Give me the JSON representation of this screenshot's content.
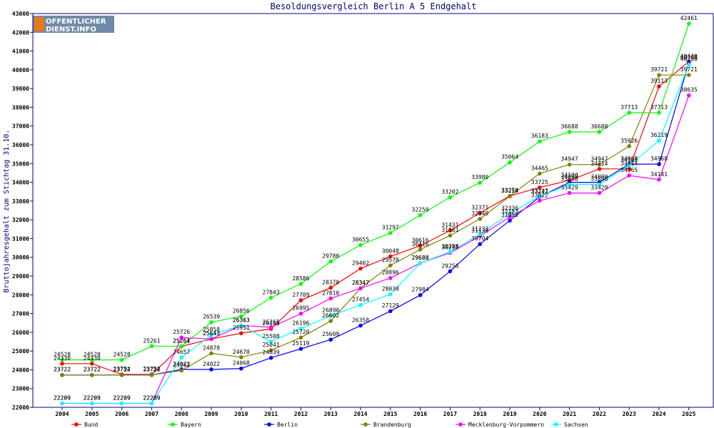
{
  "logo": {
    "line1": "OFFENTLICHER",
    "line2": "DIENST.INFO"
  },
  "chart_data": {
    "type": "line",
    "title": "Besoldungsvergleich Berlin A 5 Endgehalt",
    "xlabel": "",
    "ylabel": "Bruttojahresgehalt zum Stichtag 31.10.",
    "ylim": [
      22000,
      43000
    ],
    "yticks": [
      22000,
      23000,
      24000,
      25000,
      26000,
      27000,
      28000,
      29000,
      30000,
      31000,
      32000,
      33000,
      34000,
      35000,
      36000,
      37000,
      38000,
      39000,
      40000,
      41000,
      42000,
      43000
    ],
    "grid": false,
    "legend": "bottom",
    "x": [
      "2004",
      "2005",
      "2006",
      "2007",
      "2008",
      "2009",
      "2010",
      "2011",
      "2012",
      "2013",
      "2014",
      "2015",
      "2016",
      "2017",
      "2018",
      "2019",
      "2020",
      "2021",
      "2022",
      "2023",
      "2024",
      "2025"
    ],
    "series": [
      {
        "name": "Bund",
        "color": "#ff0000",
        "values": [
          24330,
          24330,
          23754,
          23754,
          25254,
          25643,
          25951,
          26185,
          27709,
          28378,
          29402,
          30048,
          30616,
          31431,
          32371,
          33274,
          33725,
          34100,
          34714,
          34714,
          39113,
          40440
        ]
      },
      {
        "name": "Bayern",
        "color": "#00ff00",
        "values": [
          24528,
          24528,
          24528,
          25261,
          25261,
          26539,
          26856,
          27843,
          28586,
          29780,
          30655,
          31297,
          32250,
          33202,
          33980,
          35064,
          36183,
          36688,
          36688,
          37713,
          37713,
          42461
        ]
      },
      {
        "name": "Berlin",
        "color": "#0000ff",
        "values": [
          23722,
          23722,
          23722,
          23722,
          24022,
          24022,
          24068,
          24639,
          25119,
          25609,
          26358,
          27129,
          27984,
          29256,
          30704,
          31958,
          33222,
          34000,
          34000,
          34968,
          34968,
          40380
        ]
      },
      {
        "name": "Brandenburg",
        "color": "#808000",
        "values": [
          23722,
          23722,
          23722,
          23722,
          23962,
          24878,
          24670,
          25041,
          25720,
          26602,
          28347,
          29570,
          30416,
          31161,
          32049,
          33258,
          34465,
          34947,
          34947,
          35926,
          39721,
          39721
        ]
      },
      {
        "name": "Mecklenburg-Vorpommern",
        "color": "#ff00ff",
        "values": [
          22209,
          22209,
          22209,
          22209,
          25726,
          25643,
          26363,
          26265,
          26995,
          27810,
          28347,
          28896,
          29688,
          30235,
          31136,
          32153,
          33022,
          33429,
          33429,
          34365,
          34141,
          38635
        ]
      },
      {
        "name": "Sachsen",
        "color": "#00ffff",
        "values": [
          22209,
          22209,
          22209,
          22209,
          24657,
          25858,
          26363,
          25508,
          26196,
          26890,
          27454,
          28030,
          29688,
          30288,
          31233,
          32336,
          33247,
          33888,
          33888,
          34903,
          36219,
          40280
        ]
      }
    ]
  }
}
